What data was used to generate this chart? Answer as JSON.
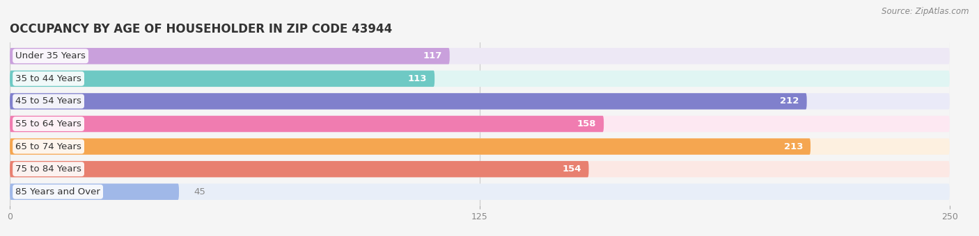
{
  "title": "OCCUPANCY BY AGE OF HOUSEHOLDER IN ZIP CODE 43944",
  "source": "Source: ZipAtlas.com",
  "categories": [
    "Under 35 Years",
    "35 to 44 Years",
    "45 to 54 Years",
    "55 to 64 Years",
    "65 to 74 Years",
    "75 to 84 Years",
    "85 Years and Over"
  ],
  "values": [
    117,
    113,
    212,
    158,
    213,
    154,
    45
  ],
  "bar_colors": [
    "#c9a0dc",
    "#6ec9c4",
    "#8080cc",
    "#f07cb0",
    "#f5a650",
    "#e88070",
    "#a0b8e8"
  ],
  "bar_bg_colors": [
    "#ede8f5",
    "#e0f5f3",
    "#eaeaf8",
    "#fde8f2",
    "#fdf0e0",
    "#fce8e4",
    "#e8eef8"
  ],
  "xlim": [
    0,
    250
  ],
  "xticks": [
    0,
    125,
    250
  ],
  "label_fontsize": 9.5,
  "value_fontsize": 9.5,
  "title_fontsize": 12,
  "bg_color": "#f5f5f5",
  "bar_height": 0.72,
  "bar_gap": 0.04
}
